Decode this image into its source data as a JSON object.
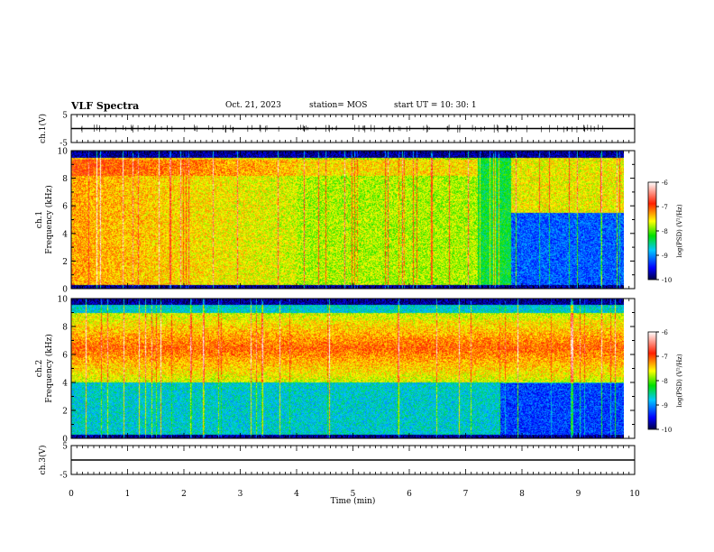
{
  "header": {
    "title": "VLF Spectra",
    "date": "Oct. 21, 2023",
    "station": "station= MOS",
    "start": "start UT =   10: 30: 1"
  },
  "chart_data": [
    {
      "type": "line",
      "panel": "ch.1(V)",
      "ylabel": "ch.1(V)",
      "ylim": [
        -5,
        5
      ],
      "yticks": [
        "5",
        "-5"
      ],
      "x": [
        0,
        10
      ],
      "values": [
        0,
        0
      ],
      "xlim": [
        0,
        10
      ],
      "colors": {
        "line": "#000000"
      }
    },
    {
      "type": "heatmap",
      "panel": "ch.1 spectrogram",
      "ylabel_lines": [
        "ch.1",
        "Frequency (kHz)"
      ],
      "ylim": [
        0,
        10
      ],
      "yticks": [
        "0",
        "2",
        "4",
        "6",
        "8",
        "10"
      ],
      "xlim": [
        0,
        10
      ],
      "x_end_min": 9.8,
      "colorbar": {
        "label": "log(PSD) (V²/Hz)",
        "ticks": [
          "-6",
          "-7",
          "-8",
          "-9",
          "-10"
        ],
        "range": [
          -10,
          -6
        ]
      },
      "description_levels": {
        "segments_min": [
          0,
          2,
          4,
          6,
          7.2,
          7.8,
          9.8
        ],
        "band_kHz": [
          [
            0.3,
            9.5
          ]
        ],
        "dominant_logpsd": [
          -7.0,
          -7.5,
          -7.8,
          -7.9,
          -8.5,
          -9.3
        ]
      }
    },
    {
      "type": "heatmap",
      "panel": "ch.2 spectrogram",
      "ylabel_lines": [
        "ch.2",
        "Frequency (kHz)"
      ],
      "ylim": [
        0,
        10
      ],
      "yticks": [
        "0",
        "2",
        "4",
        "6",
        "8",
        "10"
      ],
      "xlim": [
        0,
        10
      ],
      "x_end_min": 9.8,
      "colorbar": {
        "label": "log(PSD) (V²/Hz)",
        "ticks": [
          "-6",
          "-7",
          "-8",
          "-9",
          "-10"
        ],
        "range": [
          -10,
          -6
        ]
      },
      "description_levels": {
        "peak_band_kHz": [
          5,
          8
        ],
        "peak_logpsd": -7.0,
        "low_band_logpsd": -8.7
      }
    },
    {
      "type": "line",
      "panel": "ch.3(V)",
      "ylabel": "ch.3(V)",
      "ylim": [
        -5,
        5
      ],
      "yticks": [
        "5",
        "-5"
      ],
      "x": [
        0,
        10
      ],
      "values": [
        0,
        0
      ],
      "xlim": [
        0,
        10
      ],
      "xlabel": "Time (min)",
      "xticks": [
        "0",
        "1",
        "2",
        "3",
        "4",
        "5",
        "6",
        "7",
        "8",
        "9",
        "10"
      ],
      "colors": {
        "line": "#000000"
      }
    }
  ]
}
